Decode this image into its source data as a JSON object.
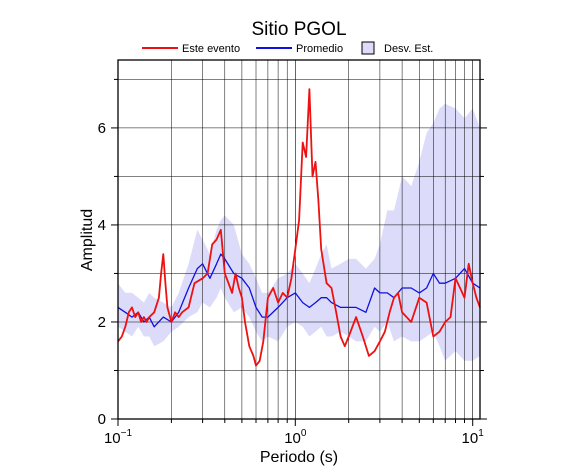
{
  "chart_data": {
    "type": "line",
    "title": "Sitio PGOL",
    "xlabel": "Periodo (s)",
    "ylabel": "Amplitud",
    "x_scale": "log",
    "xlim": [
      0.1,
      11
    ],
    "ylim": [
      0,
      7.4
    ],
    "grid": "log-decades-vertical, y-every-1",
    "legend_position": "top",
    "x_tick_labels": [
      {
        "value": 0.1,
        "base": "10",
        "exp": "−1"
      },
      {
        "value": 1,
        "base": "10",
        "exp": "0"
      },
      {
        "value": 10,
        "base": "10",
        "exp": "1"
      }
    ],
    "y_ticks": [
      0,
      2,
      4,
      6
    ],
    "y_tick_labels": [
      "0",
      "2",
      "4",
      "6"
    ],
    "legend": [
      {
        "label": "Este evento",
        "color": "#ee1111",
        "kind": "line"
      },
      {
        "label": "Promedio",
        "color": "#1111dd",
        "kind": "line"
      },
      {
        "label": "Desv. Est.",
        "color": "#dcdcfa",
        "kind": "box"
      }
    ],
    "series": [
      {
        "name": "Este evento",
        "color": "#ee1111",
        "x": [
          0.1,
          0.105,
          0.11,
          0.115,
          0.12,
          0.125,
          0.13,
          0.135,
          0.14,
          0.145,
          0.15,
          0.16,
          0.17,
          0.175,
          0.18,
          0.185,
          0.19,
          0.2,
          0.21,
          0.22,
          0.23,
          0.25,
          0.27,
          0.3,
          0.32,
          0.34,
          0.36,
          0.38,
          0.4,
          0.42,
          0.44,
          0.46,
          0.48,
          0.5,
          0.52,
          0.55,
          0.58,
          0.6,
          0.63,
          0.66,
          0.7,
          0.75,
          0.8,
          0.85,
          0.9,
          0.95,
          1.0,
          1.05,
          1.1,
          1.15,
          1.2,
          1.25,
          1.3,
          1.35,
          1.4,
          1.5,
          1.6,
          1.7,
          1.8,
          1.9,
          2.0,
          2.2,
          2.4,
          2.6,
          2.8,
          3.0,
          3.2,
          3.4,
          3.6,
          3.8,
          4.0,
          4.5,
          5.0,
          5.5,
          6.0,
          6.5,
          7.0,
          7.5,
          8.0,
          8.5,
          9.0,
          9.5,
          10.0,
          10.5,
          11.0
        ],
        "y": [
          1.6,
          1.7,
          1.9,
          2.2,
          2.3,
          2.1,
          2.2,
          2.0,
          2.1,
          2.0,
          2.1,
          2.2,
          2.5,
          3.0,
          3.4,
          2.8,
          2.3,
          2.0,
          2.2,
          2.1,
          2.2,
          2.3,
          2.8,
          2.9,
          3.0,
          3.6,
          3.7,
          3.9,
          3.0,
          2.8,
          2.6,
          3.0,
          2.7,
          2.5,
          2.0,
          1.5,
          1.3,
          1.1,
          1.2,
          1.6,
          2.5,
          2.7,
          2.4,
          2.6,
          2.5,
          2.9,
          3.5,
          4.1,
          5.7,
          5.4,
          6.8,
          5.0,
          5.3,
          4.5,
          3.5,
          2.8,
          2.7,
          2.2,
          1.7,
          1.5,
          1.7,
          2.1,
          1.7,
          1.3,
          1.4,
          1.6,
          1.8,
          2.2,
          2.5,
          2.6,
          2.2,
          2.0,
          2.5,
          2.4,
          1.7,
          1.8,
          2.0,
          2.1,
          2.9,
          2.7,
          2.5,
          3.2,
          2.8,
          2.5,
          2.3
        ]
      },
      {
        "name": "Promedio",
        "color": "#1111dd",
        "x": [
          0.1,
          0.11,
          0.12,
          0.13,
          0.14,
          0.15,
          0.16,
          0.18,
          0.2,
          0.22,
          0.25,
          0.28,
          0.3,
          0.33,
          0.36,
          0.38,
          0.4,
          0.45,
          0.5,
          0.55,
          0.6,
          0.65,
          0.7,
          0.8,
          0.9,
          1.0,
          1.1,
          1.2,
          1.3,
          1.4,
          1.5,
          1.6,
          1.8,
          2.0,
          2.2,
          2.5,
          2.8,
          3.0,
          3.3,
          3.6,
          4.0,
          4.5,
          5.0,
          5.5,
          6.0,
          6.5,
          7.0,
          8.0,
          9.0,
          10.0,
          11.0
        ],
        "y": [
          2.3,
          2.2,
          2.1,
          2.2,
          2.0,
          2.1,
          1.9,
          2.1,
          2.0,
          2.2,
          2.7,
          3.1,
          3.2,
          2.9,
          3.2,
          3.4,
          3.3,
          3.0,
          2.9,
          2.7,
          2.3,
          2.1,
          2.1,
          2.3,
          2.5,
          2.6,
          2.4,
          2.3,
          2.4,
          2.5,
          2.5,
          2.4,
          2.3,
          2.3,
          2.3,
          2.2,
          2.7,
          2.6,
          2.6,
          2.5,
          2.7,
          2.7,
          2.6,
          2.7,
          3.0,
          2.8,
          2.8,
          2.9,
          3.1,
          2.8,
          2.7
        ]
      }
    ],
    "band": {
      "name": "Desv. Est.",
      "color": "#dcdcfa",
      "x": [
        0.1,
        0.11,
        0.12,
        0.13,
        0.14,
        0.15,
        0.16,
        0.18,
        0.2,
        0.22,
        0.25,
        0.28,
        0.3,
        0.33,
        0.36,
        0.38,
        0.4,
        0.45,
        0.5,
        0.55,
        0.6,
        0.65,
        0.7,
        0.8,
        0.9,
        1.0,
        1.1,
        1.2,
        1.3,
        1.4,
        1.5,
        1.6,
        1.8,
        2.0,
        2.2,
        2.5,
        2.8,
        3.0,
        3.3,
        3.6,
        4.0,
        4.5,
        5.0,
        5.5,
        6.0,
        6.5,
        7.0,
        8.0,
        9.0,
        10.0,
        11.0
      ],
      "upper": [
        2.8,
        2.6,
        2.6,
        2.5,
        2.4,
        2.6,
        2.5,
        2.4,
        2.3,
        2.6,
        3.2,
        3.9,
        3.7,
        3.4,
        3.9,
        4.1,
        4.2,
        4.0,
        3.4,
        3.2,
        2.9,
        2.6,
        2.6,
        2.9,
        3.0,
        3.2,
        3.0,
        2.8,
        3.1,
        3.4,
        3.6,
        3.1,
        3.2,
        3.3,
        3.3,
        3.1,
        3.3,
        3.6,
        4.3,
        4.3,
        5.0,
        4.8,
        5.3,
        5.9,
        6.1,
        6.4,
        6.5,
        6.4,
        6.2,
        6.4,
        6.0
      ],
      "lower": [
        1.9,
        1.8,
        1.7,
        1.9,
        1.7,
        1.7,
        1.5,
        1.6,
        1.8,
        1.9,
        2.1,
        2.2,
        2.4,
        2.3,
        2.5,
        2.7,
        2.5,
        2.2,
        2.3,
        2.1,
        1.8,
        1.6,
        1.7,
        1.6,
        1.9,
        2.0,
        1.9,
        1.7,
        1.8,
        1.9,
        1.7,
        1.7,
        1.8,
        1.7,
        1.6,
        1.6,
        1.9,
        1.8,
        2.0,
        1.6,
        1.7,
        1.6,
        1.6,
        1.7,
        1.8,
        1.5,
        1.2,
        1.4,
        1.2,
        1.2,
        1.3
      ]
    }
  }
}
